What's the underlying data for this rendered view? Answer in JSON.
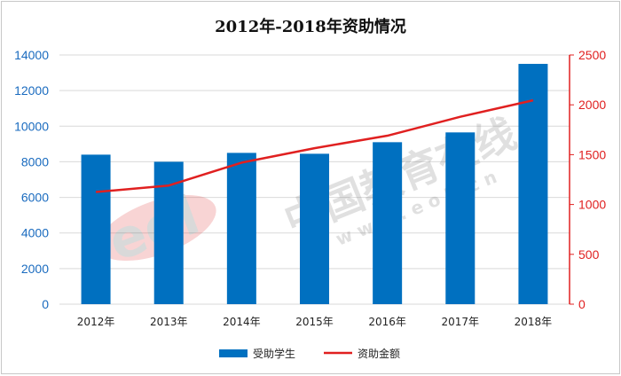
{
  "chart_data": {
    "type": "bar",
    "title": "2012年-2018年资助情况",
    "categories": [
      "2012年",
      "2013年",
      "2014年",
      "2015年",
      "2016年",
      "2017年",
      "2018年"
    ],
    "series": [
      {
        "name": "受助学生",
        "type": "bar",
        "axis": "left",
        "color": "#0070c0",
        "values": [
          8400,
          8000,
          8500,
          8450,
          9100,
          9650,
          13500
        ]
      },
      {
        "name": "资助金额",
        "type": "line",
        "axis": "right",
        "color": "#e02020",
        "values": [
          1125,
          1190,
          1420,
          1565,
          1690,
          1880,
          2045
        ]
      }
    ],
    "y_left": {
      "min": 0,
      "max": 14000,
      "step": 2000,
      "ticks": [
        "0",
        "2000",
        "4000",
        "6000",
        "8000",
        "10000",
        "12000",
        "14000"
      ],
      "color": "#1a6bbf"
    },
    "y_right": {
      "min": 0,
      "max": 2500,
      "step": 500,
      "ticks": [
        "0",
        "500",
        "1000",
        "1500",
        "2000",
        "2500"
      ],
      "color": "#e02020"
    },
    "xlabel": "",
    "ylabel": "",
    "grid": true,
    "legend_position": "bottom"
  },
  "watermark": {
    "text": "中国教育在线",
    "url": "w w w . e o l . c n",
    "logo": "eol"
  }
}
